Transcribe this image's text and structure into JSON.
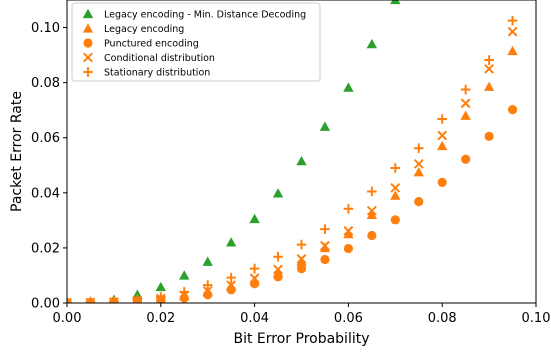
{
  "chart_data": {
    "type": "scatter",
    "xlabel": "Bit Error Probability",
    "ylabel": "Packet Error Rate",
    "xlim": [
      0.0,
      0.1
    ],
    "ylim": [
      0.0,
      0.11
    ],
    "x_ticks": [
      0.0,
      0.02,
      0.04,
      0.06,
      0.08,
      0.1
    ],
    "x_tick_labels": [
      "0.00",
      "0.02",
      "0.04",
      "0.06",
      "0.08",
      "0.10"
    ],
    "y_ticks": [
      0.0,
      0.02,
      0.04,
      0.06,
      0.08,
      0.1
    ],
    "y_tick_labels": [
      "0.00",
      "0.02",
      "0.04",
      "0.06",
      "0.08",
      "0.10"
    ],
    "grid": false,
    "legend_position": "top-left",
    "series": [
      {
        "name": "Legacy encoding - Min. Distance Decoding",
        "marker": "triangle",
        "color": "#2ca02c",
        "x": [
          0.0,
          0.005,
          0.01,
          0.015,
          0.02,
          0.025,
          0.03,
          0.035,
          0.04,
          0.045,
          0.05,
          0.055,
          0.06,
          0.065,
          0.07
        ],
        "y": [
          0.0002,
          0.0005,
          0.0012,
          0.003,
          0.0058,
          0.01,
          0.015,
          0.022,
          0.0305,
          0.0398,
          0.0515,
          0.064,
          0.0782,
          0.094,
          0.11
        ]
      },
      {
        "name": "Legacy encoding",
        "marker": "triangle",
        "color": "#ff7f0e",
        "x": [
          0.0,
          0.005,
          0.01,
          0.015,
          0.02,
          0.025,
          0.03,
          0.035,
          0.04,
          0.045,
          0.05,
          0.055,
          0.06,
          0.065,
          0.07,
          0.075,
          0.08,
          0.085,
          0.09,
          0.095
        ],
        "y": [
          0.0001,
          0.0002,
          0.0004,
          0.0008,
          0.0015,
          0.0025,
          0.004,
          0.006,
          0.008,
          0.011,
          0.015,
          0.02,
          0.025,
          0.032,
          0.039,
          0.0475,
          0.057,
          0.068,
          0.0785,
          0.0915
        ]
      },
      {
        "name": "Punctured encoding",
        "marker": "circle",
        "color": "#ff7f0e",
        "x": [
          0.0,
          0.005,
          0.01,
          0.015,
          0.02,
          0.025,
          0.03,
          0.035,
          0.04,
          0.045,
          0.05,
          0.055,
          0.06,
          0.065,
          0.07,
          0.075,
          0.08,
          0.085,
          0.09,
          0.095
        ],
        "y": [
          0.0001,
          0.0002,
          0.0004,
          0.0007,
          0.0012,
          0.0018,
          0.003,
          0.0048,
          0.007,
          0.0095,
          0.0125,
          0.0158,
          0.0198,
          0.0245,
          0.0302,
          0.0368,
          0.0438,
          0.0522,
          0.0605,
          0.0702
        ]
      },
      {
        "name": "Conditional distribution",
        "marker": "x",
        "color": "#ff7f0e",
        "x": [
          0.0,
          0.005,
          0.01,
          0.015,
          0.02,
          0.025,
          0.03,
          0.035,
          0.04,
          0.045,
          0.05,
          0.055,
          0.06,
          0.065,
          0.07,
          0.075,
          0.08,
          0.085,
          0.09,
          0.095
        ],
        "y": [
          0.0001,
          0.0002,
          0.0004,
          0.0009,
          0.0016,
          0.0028,
          0.0044,
          0.0065,
          0.009,
          0.0122,
          0.016,
          0.0208,
          0.0262,
          0.0335,
          0.0418,
          0.0505,
          0.0608,
          0.0725,
          0.085,
          0.0985
        ]
      },
      {
        "name": "Stationary distribution",
        "marker": "plus",
        "color": "#ff7f0e",
        "x": [
          0.0,
          0.005,
          0.01,
          0.015,
          0.02,
          0.025,
          0.03,
          0.035,
          0.04,
          0.045,
          0.05,
          0.055,
          0.06,
          0.065,
          0.07,
          0.075,
          0.08,
          0.085,
          0.09,
          0.095
        ],
        "y": [
          0.0001,
          0.0003,
          0.0006,
          0.0012,
          0.0022,
          0.004,
          0.0065,
          0.0092,
          0.0125,
          0.0168,
          0.0212,
          0.0268,
          0.0342,
          0.0405,
          0.049,
          0.0562,
          0.0668,
          0.0775,
          0.0882,
          0.1025
        ]
      }
    ]
  }
}
